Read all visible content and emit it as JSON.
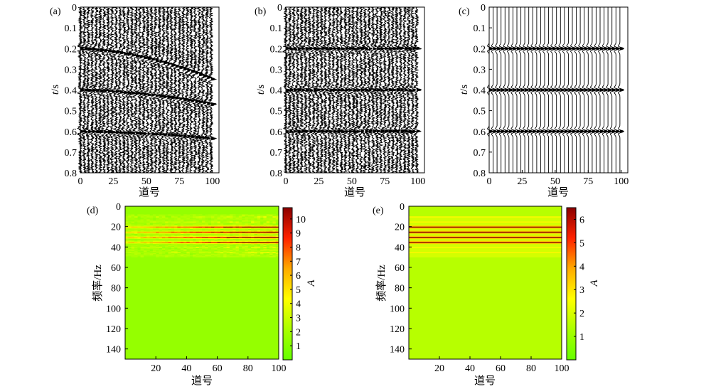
{
  "chart_data": [
    {
      "id": "a",
      "panel_label": "(a)",
      "type": "seismic-wiggle",
      "xlabel": "道号",
      "ylabel_italic": "t",
      "ylabel_unit": "/s",
      "xlim": [
        0,
        105
      ],
      "ylim": [
        0.8,
        0
      ],
      "xticks": [
        0,
        25,
        50,
        75,
        100
      ],
      "yticks": [
        0,
        0.1,
        0.2,
        0.3,
        0.4,
        0.5,
        0.6,
        0.7,
        0.8
      ],
      "traces": {
        "first": 0,
        "last": 100,
        "step": 3
      },
      "events": [
        {
          "t0": 0.2,
          "t_end": 0.35
        },
        {
          "t0": 0.4,
          "t_end": 0.47
        },
        {
          "t0": 0.6,
          "t_end": 0.635
        }
      ],
      "noise": "strong"
    },
    {
      "id": "b",
      "panel_label": "(b)",
      "type": "seismic-wiggle",
      "xlabel": "道号",
      "ylabel_italic": "t",
      "ylabel_unit": "/s",
      "xlim": [
        0,
        105
      ],
      "ylim": [
        0.8,
        0
      ],
      "xticks": [
        0,
        25,
        50,
        75,
        100
      ],
      "yticks": [
        0,
        0.1,
        0.2,
        0.3,
        0.4,
        0.5,
        0.6,
        0.7,
        0.8
      ],
      "traces": {
        "first": 0,
        "last": 100,
        "step": 3
      },
      "events": [
        {
          "t0": 0.2,
          "t_end": 0.2
        },
        {
          "t0": 0.4,
          "t_end": 0.4
        },
        {
          "t0": 0.6,
          "t_end": 0.6
        }
      ],
      "noise": "strong"
    },
    {
      "id": "c",
      "panel_label": "(c)",
      "type": "seismic-wiggle",
      "xlabel": "道号",
      "ylabel_italic": "t",
      "ylabel_unit": "/s",
      "xlim": [
        0,
        105
      ],
      "ylim": [
        0.8,
        0
      ],
      "xticks": [
        0,
        25,
        50,
        75,
        100
      ],
      "yticks": [
        0,
        0.1,
        0.2,
        0.3,
        0.4,
        0.5,
        0.6,
        0.7,
        0.8
      ],
      "traces": {
        "first": 0,
        "last": 100,
        "step": 3
      },
      "events": [
        {
          "t0": 0.2,
          "t_end": 0.2
        },
        {
          "t0": 0.4,
          "t_end": 0.4
        },
        {
          "t0": 0.6,
          "t_end": 0.6
        }
      ],
      "noise": "none"
    },
    {
      "id": "d",
      "panel_label": "(d)",
      "type": "heatmap",
      "xlabel": "道号",
      "ylabel": "频率/Hz",
      "colorbar_label": "A",
      "xlim": [
        0,
        100
      ],
      "ylim": [
        150,
        0
      ],
      "xticks": [
        20,
        40,
        60,
        80,
        100
      ],
      "yticks": [
        0,
        20,
        40,
        60,
        80,
        100,
        120,
        140
      ],
      "colorbar_ticks": [
        1,
        2,
        3,
        4,
        5,
        6,
        7,
        8,
        9,
        10
      ],
      "colorbar_range": [
        0,
        10.8
      ],
      "background_A": 1.5,
      "energy_band_hz": [
        8,
        50
      ],
      "strong_lines_hz": [
        20,
        25,
        30,
        35
      ],
      "noisy": true
    },
    {
      "id": "e",
      "panel_label": "(e)",
      "type": "heatmap",
      "xlabel": "道号",
      "ylabel": "频率/Hz",
      "colorbar_label": "A",
      "xlim": [
        0,
        100
      ],
      "ylim": [
        150,
        0
      ],
      "xticks": [
        20,
        40,
        60,
        80,
        100
      ],
      "yticks": [
        0,
        20,
        40,
        60,
        80,
        100,
        120,
        140
      ],
      "colorbar_ticks": [
        1,
        2,
        3,
        4,
        5,
        6
      ],
      "colorbar_range": [
        0,
        6.5
      ],
      "background_A": 1.5,
      "energy_band_hz": [
        10,
        50
      ],
      "strong_lines_hz": [
        20,
        25,
        30,
        35
      ],
      "noisy": false
    }
  ]
}
